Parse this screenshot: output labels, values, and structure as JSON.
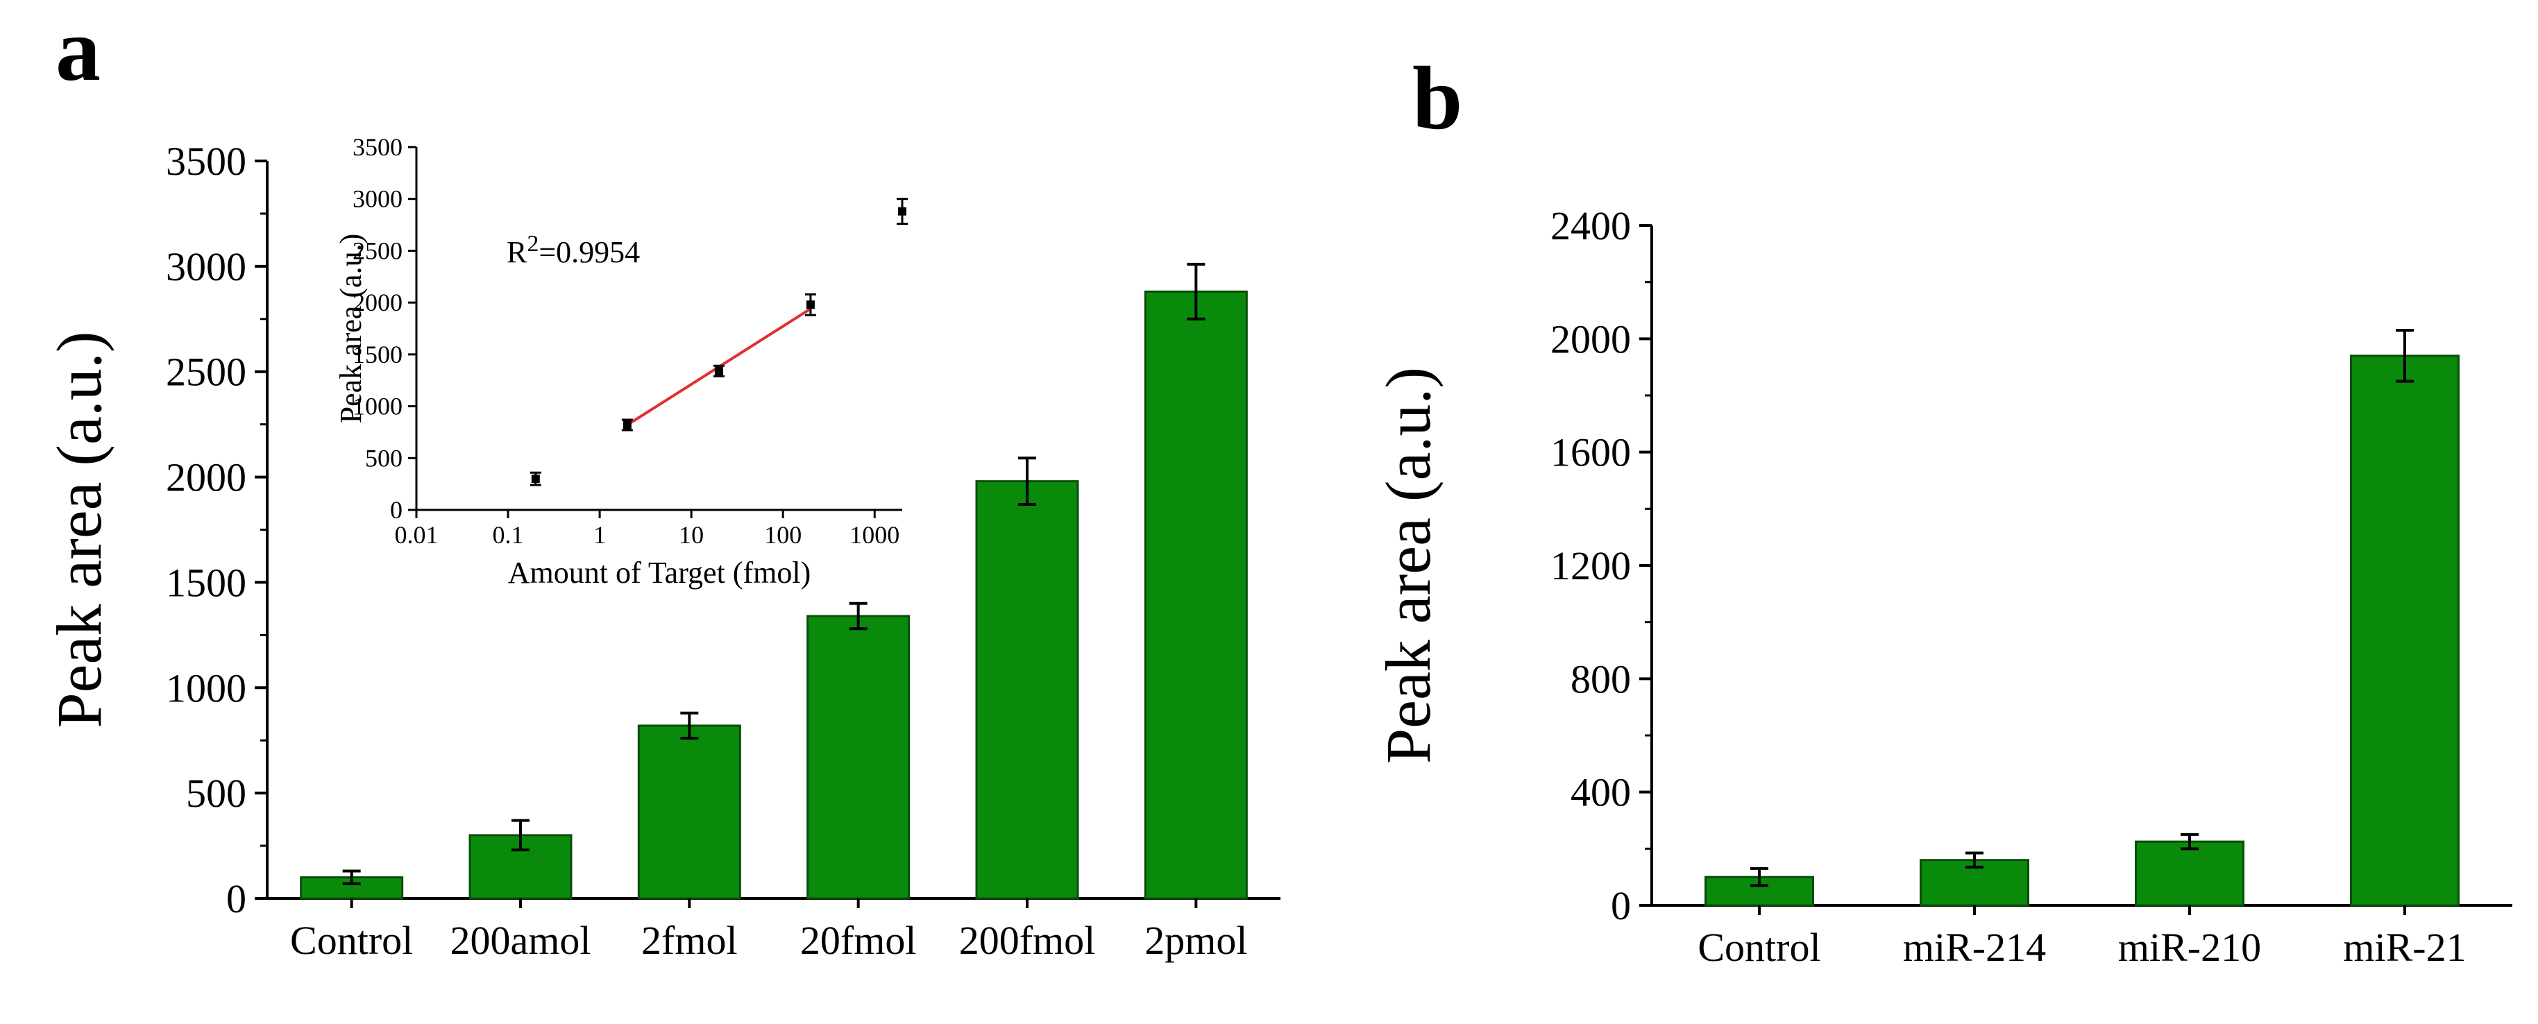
{
  "figure": {
    "bar_color": "#0a8a0a",
    "bar_edge": "#0a4d0a",
    "fit_line_color": "#e03030"
  },
  "chart_data": [
    {
      "panel": "a",
      "type": "bar",
      "title": "",
      "xlabel": "",
      "ylabel": "Peak area (a.u.)",
      "ylim": [
        0,
        3500
      ],
      "yticks": [
        0,
        500,
        1000,
        1500,
        2000,
        2500,
        3000,
        3500
      ],
      "categories": [
        "Control",
        "200amol",
        "2fmol",
        "20fmol",
        "200fmol",
        "2pmol"
      ],
      "values": [
        100,
        300,
        820,
        1340,
        1980,
        2880
      ],
      "errors": [
        30,
        70,
        60,
        60,
        110,
        130
      ],
      "inset": {
        "type": "scatter",
        "xlabel": "Amount of Target (fmol)",
        "ylabel": "Peak area (a.u.)",
        "xscale": "log",
        "xlim": [
          0.01,
          2000
        ],
        "xticks": [
          0.01,
          0.1,
          1,
          10,
          100,
          1000
        ],
        "xtick_labels": [
          "0.01",
          "0.1",
          "1",
          "10",
          "100",
          "1000"
        ],
        "ylim": [
          0,
          3500
        ],
        "yticks": [
          0,
          500,
          1000,
          1500,
          2000,
          2500,
          3000,
          3500
        ],
        "x": [
          0.2,
          2,
          20,
          200,
          2000
        ],
        "y": [
          300,
          820,
          1340,
          1980,
          2880
        ],
        "errors": [
          60,
          50,
          50,
          100,
          120
        ],
        "fit": {
          "x": [
            2,
            200
          ],
          "y": [
            820,
            1940
          ]
        },
        "annotation": {
          "base": "R",
          "sup": "2",
          "rest": "=0.9954"
        }
      }
    },
    {
      "panel": "b",
      "type": "bar",
      "title": "",
      "xlabel": "",
      "ylabel": "Peak area (a.u.)",
      "ylim": [
        0,
        2400
      ],
      "yticks": [
        0,
        400,
        800,
        1200,
        1600,
        2000,
        2400
      ],
      "categories": [
        "Control",
        "miR-214",
        "miR-210",
        "miR-21"
      ],
      "values": [
        100,
        160,
        225,
        1940
      ],
      "errors": [
        30,
        25,
        25,
        90
      ]
    }
  ]
}
